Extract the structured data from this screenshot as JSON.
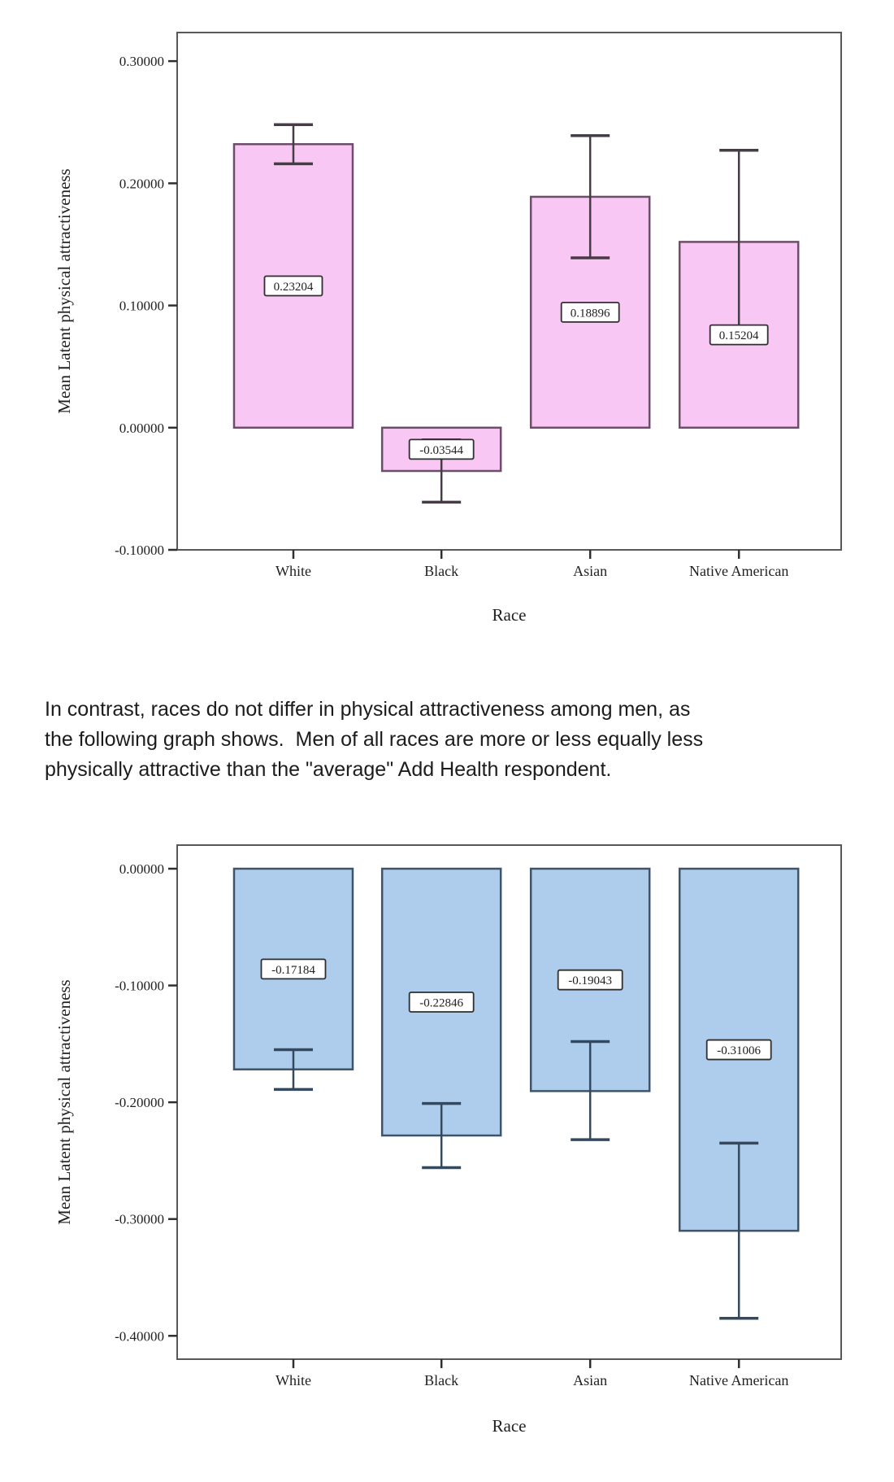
{
  "paragraph": {
    "lines": [
      "In contrast, races do not differ in physical attractiveness among men, as",
      "the following graph shows.  Men of all races are more or less equally less",
      "physically attractive than the \"average\" Add Health respondent."
    ]
  },
  "chart_data": [
    {
      "id": "female-attractiveness-by-race",
      "type": "bar",
      "title": "",
      "categories": [
        "White",
        "Black",
        "Asian",
        "Native American"
      ],
      "values": [
        0.23204,
        -0.03544,
        0.18896,
        0.15204
      ],
      "value_labels": [
        "0.23204",
        "-0.03544",
        "0.18896",
        "0.15204"
      ],
      "error_low": [
        0.216,
        -0.061,
        0.139,
        0.077
      ],
      "error_high": [
        0.248,
        -0.01,
        0.239,
        0.227
      ],
      "xlabel": "Race",
      "ylabel": "Mean Latent physical attractiveness",
      "ylim": [
        -0.1,
        0.3234
      ],
      "yticks": [
        0.3,
        0.2,
        0.1,
        0.0,
        -0.1
      ],
      "ytick_labels": [
        "0.30000",
        "0.20000",
        "0.10000",
        "0.00000",
        "-0.10000"
      ],
      "grid": false,
      "legend": null,
      "bar_fill": "#f8c7f3",
      "bar_stroke": "#6d4e6a",
      "error_color": "#453c45",
      "label_box_fill": "#ffffff",
      "label_box_stroke": "#2f2f2f"
    },
    {
      "id": "male-attractiveness-by-race",
      "type": "bar",
      "title": "",
      "categories": [
        "White",
        "Black",
        "Asian",
        "Native American"
      ],
      "values": [
        -0.17184,
        -0.22846,
        -0.19043,
        -0.31006
      ],
      "value_labels": [
        "-0.17184",
        "-0.22846",
        "-0.19043",
        "-0.31006"
      ],
      "error_low": [
        -0.189,
        -0.256,
        -0.232,
        -0.385
      ],
      "error_high": [
        -0.155,
        -0.201,
        -0.148,
        -0.235
      ],
      "xlabel": "Race",
      "ylabel": "Mean Latent physical attractiveness",
      "ylim": [
        -0.42,
        0.0202
      ],
      "yticks": [
        0.0,
        -0.1,
        -0.2,
        -0.3,
        -0.4
      ],
      "ytick_labels": [
        "0.00000",
        "-0.10000",
        "-0.20000",
        "-0.30000",
        "-0.40000"
      ],
      "grid": false,
      "legend": null,
      "bar_fill": "#aecdec",
      "bar_stroke": "#3f546b",
      "error_color": "#35495e",
      "label_box_fill": "#ffffff",
      "label_box_stroke": "#2f2f2f"
    }
  ]
}
